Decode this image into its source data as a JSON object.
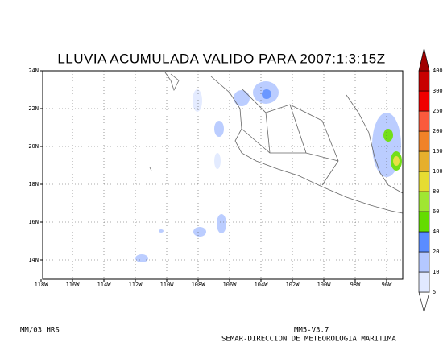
{
  "title": "LLUVIA ACUMULADA VALIDO PARA 2007:1:3:15Z",
  "map": {
    "lat_labels": [
      "24N",
      "22N",
      "20N",
      "18N",
      "16N",
      "14N"
    ],
    "lon_labels": [
      "118W",
      "116W",
      "114W",
      "112W",
      "110W",
      "108W",
      "106W",
      "104W",
      "102W",
      "100W",
      "98W",
      "96W"
    ]
  },
  "colorbar": {
    "levels": [
      5,
      10,
      20,
      40,
      60,
      80,
      100,
      150,
      200,
      250,
      300,
      400
    ],
    "colors": [
      "#ffffff",
      "#e1e9ff",
      "#b4c8ff",
      "#5a8cff",
      "#64dc00",
      "#a0e632",
      "#e6dc32",
      "#e6af2d",
      "#f08228",
      "#fa5a3c",
      "#f00000",
      "#c80000",
      "#a00000"
    ]
  },
  "footer": {
    "left": "MM/03 HRS",
    "version": "MM5-V3.7",
    "agency": "SEMAR-DIRECCION DE METEOROLOGIA MARITIMA"
  }
}
